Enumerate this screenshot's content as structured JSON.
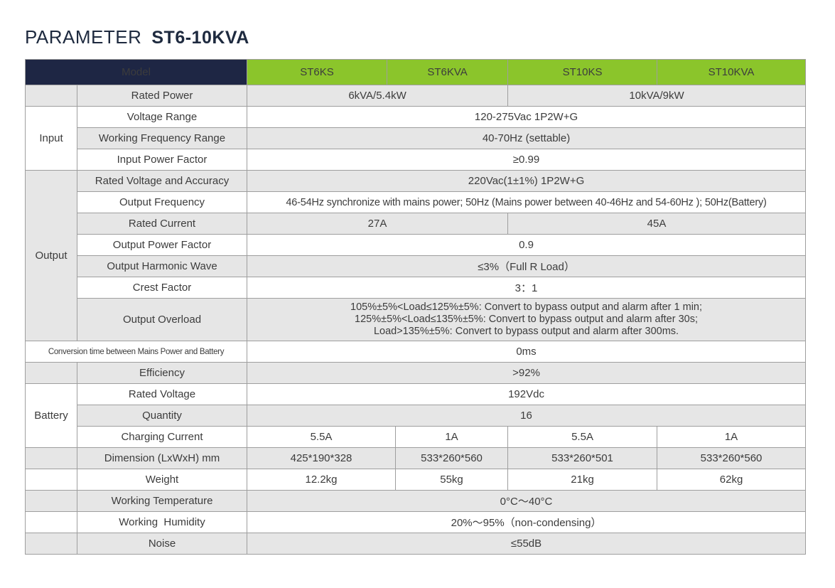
{
  "title": {
    "prefix": "PARAMETER",
    "model": "ST6-10KVA"
  },
  "colors": {
    "header_dark": "#1e2644",
    "header_green": "#8bc52b",
    "row_gray": "#e6e6e6",
    "border": "#9e9e9e"
  },
  "header": {
    "model_label": "Model",
    "models": [
      "ST6KS",
      "ST6KVA",
      "ST10KS",
      "ST10KVA"
    ]
  },
  "rows": {
    "rated_power": {
      "label": "Rated Power",
      "v6": "6kVA/5.4kW",
      "v10": "10kVA/9kW"
    },
    "input": {
      "group": "Input",
      "voltage_range": {
        "label": "Voltage Range",
        "value": "120-275Vac 1P2W+G"
      },
      "frequency_range": {
        "label": "Working Frequency Range",
        "value": "40-70Hz (settable)"
      },
      "power_factor": {
        "label": "Input Power Factor",
        "value": "≥0.99"
      }
    },
    "output": {
      "group": "Output",
      "rated_voltage": {
        "label": "Rated Voltage and Accuracy",
        "value": "220Vac(1±1%) 1P2W+G"
      },
      "frequency": {
        "label": "Output Frequency",
        "value": "46-54Hz synchronize with mains power; 50Hz (Mains power between 40-46Hz and 54-60Hz ); 50Hz(Battery)"
      },
      "rated_current": {
        "label": "Rated Current",
        "v6": "27A",
        "v10": "45A"
      },
      "power_factor": {
        "label": "Output Power Factor",
        "value": "0.9"
      },
      "harmonic": {
        "label": "Output Harmonic Wave",
        "value": "≤3%（Full R Load）"
      },
      "crest_factor": {
        "label": "Crest Factor",
        "value": "3：1"
      },
      "overload": {
        "label": "Output Overload",
        "lines": [
          "105%±5%<Load≤125%±5%: Convert to bypass output and alarm after 1 min;",
          "125%±5%<Load≤135%±5%: Convert to bypass output and alarm after 30s;",
          "Load>135%±5%: Convert to bypass output and alarm after 300ms."
        ]
      }
    },
    "conversion_time": {
      "label": "Conversion time between Mains Power and Battery",
      "value": "0ms"
    },
    "efficiency": {
      "label": "Efficiency",
      "value": ">92%"
    },
    "battery": {
      "group": "Battery",
      "rated_voltage": {
        "label": "Rated Voltage",
        "value": "192Vdc"
      },
      "quantity": {
        "label": "Quantity",
        "value": "16"
      },
      "charging_current": {
        "label": "Charging Current",
        "values": [
          "5.5A",
          "1A",
          "5.5A",
          "1A"
        ]
      }
    },
    "dimension": {
      "label": "Dimension (LxWxH) mm",
      "values": [
        "425*190*328",
        "533*260*560",
        "533*260*501",
        "533*260*560"
      ]
    },
    "weight": {
      "label": "Weight",
      "values": [
        "12.2kg",
        "55kg",
        "21kg",
        "62kg"
      ]
    },
    "working_temperature": {
      "label": "Working Temperature",
      "value": "0°C～40°C"
    },
    "working_humidity": {
      "label": "Working  Humidity",
      "value": "20%～95%（non-condensing）"
    },
    "noise": {
      "label": "Noise",
      "value": "≤55dB"
    }
  }
}
